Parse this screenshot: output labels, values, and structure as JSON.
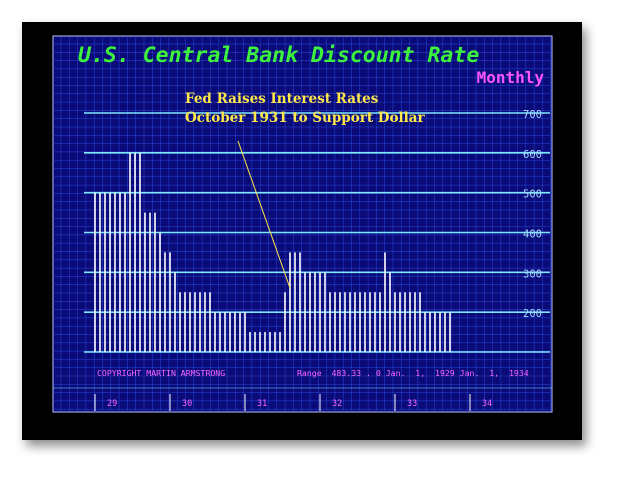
{
  "chart_data": {
    "type": "bar",
    "title": "U.S. Central Bank Discount Rate",
    "subtitle": "Monthly",
    "annotation": [
      "Fed Raises Interest Rates",
      "October 1931 to Support Dollar"
    ],
    "copyright": "COPYRIGHT MARTIN ARMSTRONG",
    "range_text": "Range  483.33 . 0 Jan.  1,  1929 Jan.  1,  1934",
    "y_ticks": [
      200,
      300,
      400,
      500,
      600,
      700
    ],
    "ylim": [
      100,
      700
    ],
    "x_labels": [
      "29",
      "30",
      "31",
      "32",
      "33",
      "34"
    ],
    "values": [
      500,
      500,
      500,
      500,
      500,
      500,
      500,
      600,
      600,
      600,
      450,
      450,
      450,
      400,
      350,
      350,
      300,
      250,
      250,
      250,
      250,
      250,
      250,
      250,
      200,
      200,
      200,
      200,
      200,
      200,
      200,
      150,
      150,
      150,
      150,
      150,
      150,
      150,
      250,
      350,
      350,
      350,
      300,
      300,
      300,
      300,
      300,
      250,
      250,
      250,
      250,
      250,
      250,
      250,
      250,
      250,
      250,
      250,
      350,
      300,
      250,
      250,
      250,
      250,
      250,
      250,
      200,
      200,
      200,
      200,
      200,
      200
    ]
  },
  "colors": {
    "background": "#0a0a78",
    "grid": "#2a48d8",
    "major_grid": "#7ee8ff",
    "bars": "#ffffff",
    "title": "#3cf23c",
    "subtitle": "#ff55ff",
    "annotation": "#ffe84a",
    "tick_labels": "#a8d8ff",
    "footer": "#ff66ff"
  }
}
